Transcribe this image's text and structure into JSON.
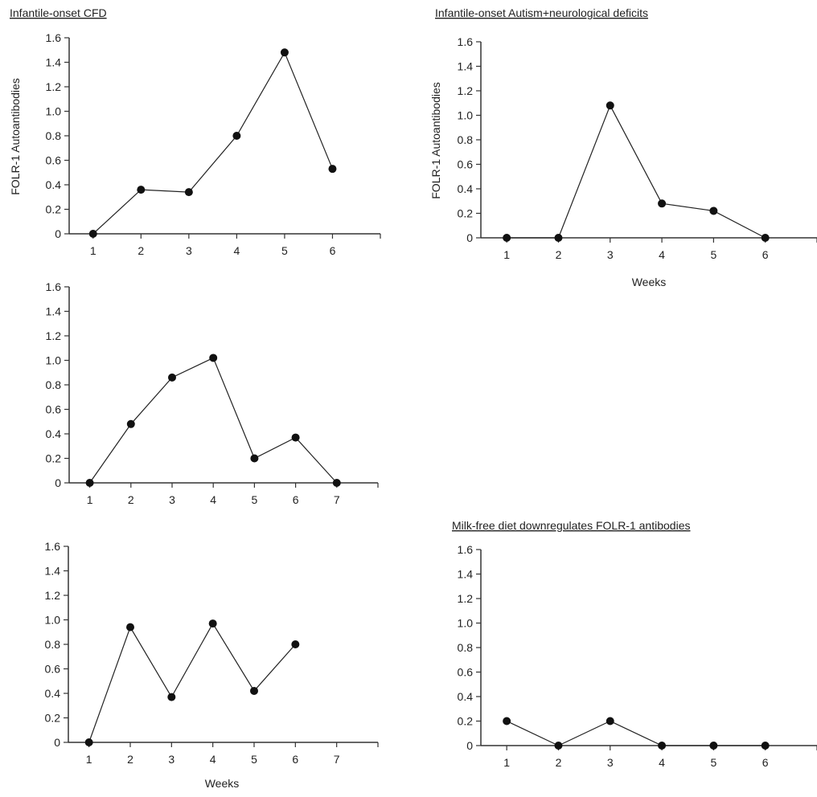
{
  "figure": {
    "heading_left": "Infantile-onset CFD",
    "heading_right": "Infantile-onset Autism+neurological deficits",
    "heading_bottom_right": "Milk-free diet downregulates FOLR-1 antibodies",
    "ylabel_left": "FOLR-1 Autoantibodies",
    "ylabel_right": "FOLR-1 Autoantibodies",
    "xlabel_top_right": "Weeks",
    "xlabel_bottom_left": "Weeks"
  },
  "chart_data": [
    {
      "type": "line",
      "title": "Infantile-onset CFD",
      "ylabel": "FOLR-1 Autoantibodies",
      "xlabel": "",
      "x": [
        1,
        2,
        3,
        4,
        5,
        6
      ],
      "values": [
        0,
        0.36,
        0.34,
        0.8,
        1.48,
        0.53
      ],
      "ylim": [
        0,
        1.6
      ],
      "yticks": [
        "0",
        "0.2",
        "0.4",
        "0.6",
        "0.8",
        "1.0",
        "1.2",
        "1.4",
        "1.6"
      ],
      "xticks": [
        "1",
        "2",
        "3",
        "4",
        "5",
        "6"
      ],
      "grid": false
    },
    {
      "type": "line",
      "title": "",
      "ylabel": "",
      "xlabel": "",
      "x": [
        1,
        2,
        3,
        4,
        5,
        6,
        7
      ],
      "values": [
        0,
        0.48,
        0.86,
        1.02,
        0.2,
        0.37,
        0
      ],
      "ylim": [
        0,
        1.6
      ],
      "yticks": [
        "0",
        "0.2",
        "0.4",
        "0.6",
        "0.8",
        "1.0",
        "1.2",
        "1.4",
        "1.6"
      ],
      "xticks": [
        "1",
        "2",
        "3",
        "4",
        "5",
        "6",
        "7"
      ],
      "grid": false
    },
    {
      "type": "line",
      "title": "",
      "ylabel": "",
      "xlabel": "Weeks",
      "x": [
        1,
        2,
        3,
        4,
        5,
        6
      ],
      "values": [
        0,
        0.94,
        0.37,
        0.97,
        0.42,
        0.8
      ],
      "ylim": [
        0,
        1.6
      ],
      "yticks": [
        "0",
        "0.2",
        "0.4",
        "0.6",
        "0.8",
        "1.0",
        "1.2",
        "1.4",
        "1.6"
      ],
      "xticks": [
        "1",
        "2",
        "3",
        "4",
        "5",
        "6",
        "7"
      ],
      "grid": false
    },
    {
      "type": "line",
      "title": "Infantile-onset Autism+neurological deficits",
      "ylabel": "FOLR-1 Autoantibodies",
      "xlabel": "Weeks",
      "x": [
        1,
        2,
        3,
        4,
        5,
        6
      ],
      "values": [
        0,
        0,
        1.08,
        0.28,
        0.22,
        0
      ],
      "ylim": [
        0,
        1.6
      ],
      "yticks": [
        "0",
        "0.2",
        "0.4",
        "0.6",
        "0.8",
        "1.0",
        "1.2",
        "1.4",
        "1.6"
      ],
      "xticks": [
        "1",
        "2",
        "3",
        "4",
        "5",
        "6"
      ],
      "grid": false
    },
    {
      "type": "line",
      "title": "Milk-free diet downregulates FOLR-1 antibodies",
      "ylabel": "",
      "xlabel": "",
      "x": [
        1,
        2,
        3,
        4,
        5,
        6
      ],
      "values": [
        0.2,
        0,
        0.2,
        0,
        0,
        0
      ],
      "ylim": [
        0,
        1.6
      ],
      "yticks": [
        "0",
        "0.2",
        "0.4",
        "0.6",
        "0.8",
        "1.0",
        "1.2",
        "1.4",
        "1.6"
      ],
      "xticks": [
        "1",
        "2",
        "3",
        "4",
        "5",
        "6"
      ],
      "grid": false
    }
  ]
}
